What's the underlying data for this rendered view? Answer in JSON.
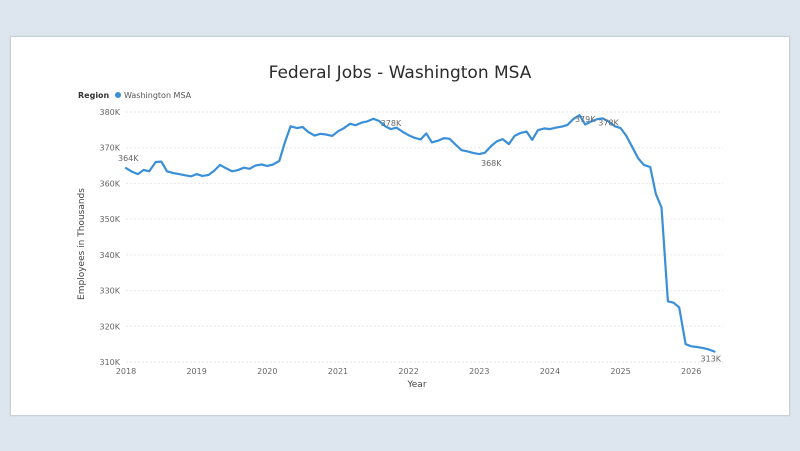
{
  "chart_data": {
    "type": "line",
    "title": "Federal Jobs - Washington MSA",
    "legend": {
      "title": "Region",
      "placement": "top-left"
    },
    "xlabel": "Year",
    "ylabel": "Employees in Thousands",
    "xlim": [
      2018,
      2026.45
    ],
    "ylim": [
      310,
      380
    ],
    "xticks": [
      2018,
      2019,
      2020,
      2021,
      2022,
      2023,
      2024,
      2025,
      2026
    ],
    "xtick_labels": [
      "2018",
      "2019",
      "2020",
      "2021",
      "2022",
      "2023",
      "2024",
      "2025",
      "2026"
    ],
    "yticks": [
      310,
      320,
      330,
      340,
      350,
      360,
      370,
      380
    ],
    "ytick_labels": [
      "310K",
      "320K",
      "330K",
      "340K",
      "350K",
      "360K",
      "370K",
      "380K"
    ],
    "grid": true,
    "series": [
      {
        "name": "Washington MSA",
        "color": "#3a8fd9",
        "x": [
          2018.0,
          2018.08,
          2018.17,
          2018.25,
          2018.33,
          2018.42,
          2018.5,
          2018.58,
          2018.67,
          2018.75,
          2018.83,
          2018.92,
          2019.0,
          2019.08,
          2019.17,
          2019.25,
          2019.33,
          2019.42,
          2019.5,
          2019.58,
          2019.67,
          2019.75,
          2019.83,
          2019.92,
          2020.0,
          2020.08,
          2020.17,
          2020.25,
          2020.33,
          2020.42,
          2020.5,
          2020.58,
          2020.67,
          2020.75,
          2020.83,
          2020.92,
          2021.0,
          2021.08,
          2021.17,
          2021.25,
          2021.33,
          2021.42,
          2021.5,
          2021.58,
          2021.67,
          2021.75,
          2021.83,
          2021.92,
          2022.0,
          2022.08,
          2022.17,
          2022.25,
          2022.33,
          2022.42,
          2022.5,
          2022.58,
          2022.67,
          2022.75,
          2022.83,
          2022.92,
          2023.0,
          2023.08,
          2023.17,
          2023.25,
          2023.33,
          2023.42,
          2023.5,
          2023.58,
          2023.67,
          2023.75,
          2023.83,
          2023.92,
          2024.0,
          2024.08,
          2024.17,
          2024.25,
          2024.33,
          2024.42,
          2024.5,
          2024.58,
          2024.67,
          2024.75,
          2024.83,
          2024.92,
          2025.0,
          2025.08,
          2025.17,
          2025.25,
          2025.33,
          2025.42,
          2025.5,
          2025.58,
          2025.67,
          2025.75,
          2025.83,
          2025.92,
          2026.0,
          2026.08,
          2026.17,
          2026.25,
          2026.33
        ],
        "y": [
          364.3,
          363.3,
          362.6,
          363.8,
          363.4,
          366.0,
          366.1,
          363.4,
          362.9,
          362.6,
          362.3,
          362.0,
          362.6,
          362.1,
          362.4,
          363.6,
          365.2,
          364.2,
          363.4,
          363.7,
          364.4,
          364.1,
          365.0,
          365.3,
          364.9,
          365.3,
          366.3,
          371.6,
          376.0,
          375.5,
          375.8,
          374.4,
          373.4,
          373.9,
          373.7,
          373.3,
          374.6,
          375.4,
          376.7,
          376.3,
          377.0,
          377.4,
          378.1,
          377.5,
          376.0,
          375.2,
          375.6,
          374.4,
          373.5,
          372.8,
          372.3,
          374.0,
          371.5,
          372.0,
          372.7,
          372.5,
          370.8,
          369.3,
          369.0,
          368.5,
          368.2,
          368.6,
          370.5,
          371.8,
          372.4,
          371.0,
          373.3,
          374.1,
          374.5,
          372.2,
          374.9,
          375.4,
          375.2,
          375.6,
          375.9,
          376.4,
          378.0,
          379.1,
          376.5,
          377.3,
          378.0,
          378.2,
          377.3,
          376.0,
          375.5,
          373.4,
          370.0,
          367.0,
          365.2,
          364.6,
          357.0,
          353.3,
          327.0,
          326.6,
          325.3,
          315.0,
          314.4,
          314.2,
          313.9,
          313.5,
          312.9
        ]
      }
    ],
    "data_labels": [
      {
        "x": 2018.0,
        "y": 364.3,
        "text": "364K"
      },
      {
        "x": 2021.75,
        "y": 378.1,
        "text": "378K"
      },
      {
        "x": 2023.17,
        "y": 368.2,
        "text": "368K"
      },
      {
        "x": 2024.5,
        "y": 379.1,
        "text": "379K"
      },
      {
        "x": 2024.83,
        "y": 378.2,
        "text": "378K"
      },
      {
        "x": 2026.33,
        "y": 312.9,
        "text": "313K"
      }
    ]
  }
}
